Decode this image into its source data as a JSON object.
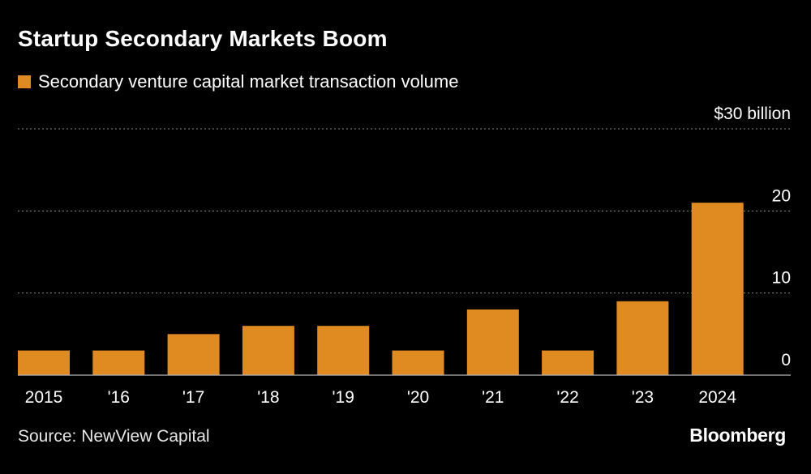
{
  "title": "Startup Secondary Markets Boom",
  "legend": {
    "label": "Secondary venture capital market transaction volume",
    "color": "#e08b22"
  },
  "source": "Source: NewView Capital",
  "brand": "Bloomberg",
  "chart_data": {
    "type": "bar",
    "title": "Startup Secondary Markets Boom",
    "xlabel": "",
    "ylabel": "",
    "categories": [
      "2015",
      "'16",
      "'17",
      "'18",
      "'19",
      "'20",
      "'21",
      "'22",
      "'23",
      "2024"
    ],
    "series": [
      {
        "name": "Secondary venture capital market transaction volume",
        "values": [
          3,
          3,
          5,
          6,
          6,
          3,
          8,
          3,
          9,
          21
        ],
        "color": "#e08b22"
      }
    ],
    "ylim": [
      0,
      30
    ],
    "y_ticks": [
      {
        "value": 0,
        "label": "0"
      },
      {
        "value": 10,
        "label": "10"
      },
      {
        "value": 20,
        "label": "20"
      },
      {
        "value": 30,
        "label": "$30 billion"
      }
    ],
    "grid": true,
    "legend_position": "top-left"
  }
}
